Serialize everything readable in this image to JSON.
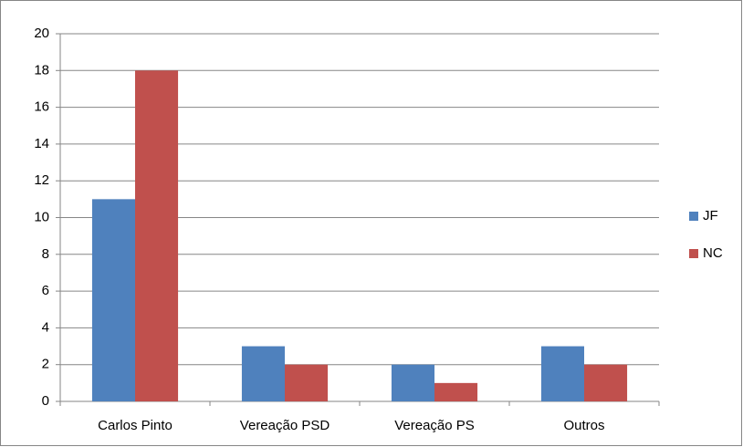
{
  "chart_data": {
    "type": "bar",
    "categories": [
      "Carlos Pinto",
      "Vereação PSD",
      "Vereação PS",
      "Outros"
    ],
    "series": [
      {
        "name": "JF",
        "color": "#4f81bd",
        "values": [
          11,
          3,
          2,
          3
        ]
      },
      {
        "name": "NC",
        "color": "#c0504d",
        "values": [
          18,
          2,
          1,
          2
        ]
      }
    ],
    "ylim": [
      0,
      20
    ],
    "yticks": [
      0,
      2,
      4,
      6,
      8,
      10,
      12,
      14,
      16,
      18,
      20
    ],
    "grid": true,
    "legend": "right"
  }
}
